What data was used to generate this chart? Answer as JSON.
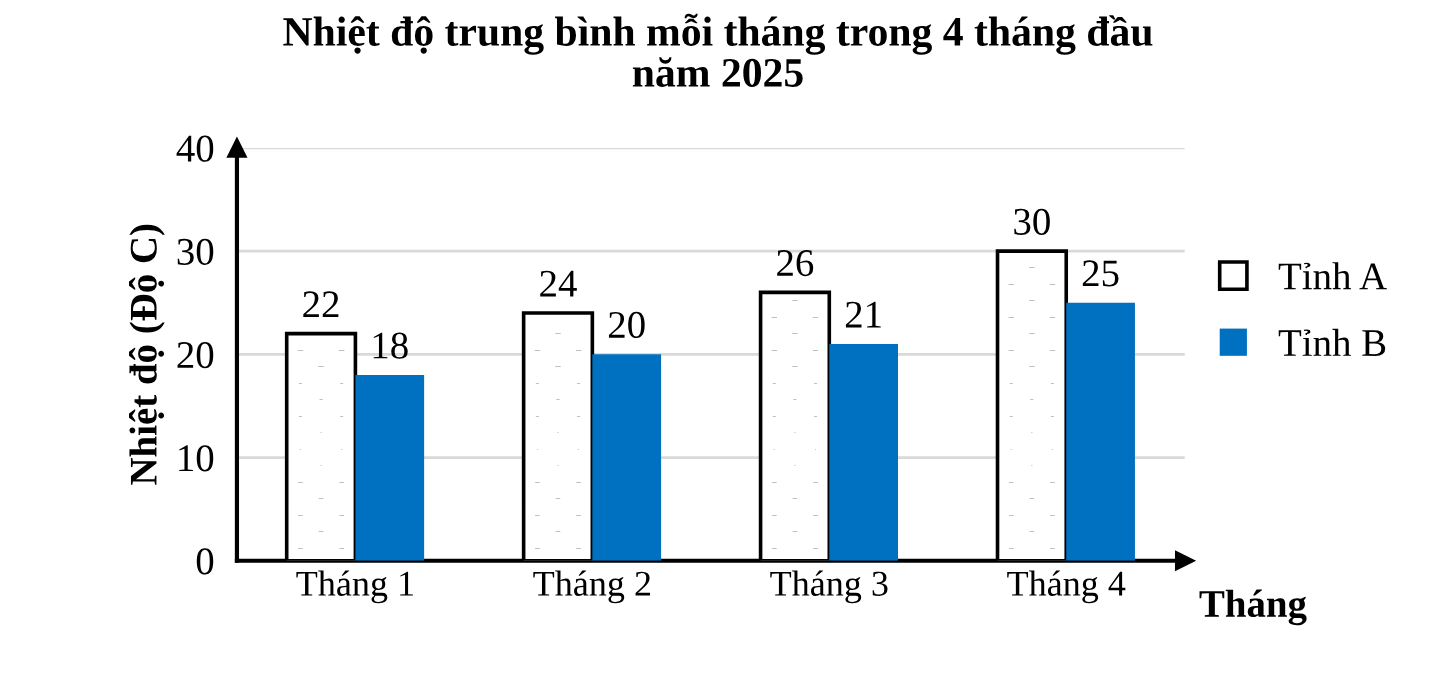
{
  "chart_data": {
    "type": "bar",
    "title": "Nhiệt độ trung bình mỗi tháng trong 4 tháng đầu\nnăm 2025",
    "xlabel": "Tháng",
    "ylabel": "Nhiệt độ (Độ C)",
    "categories": [
      "Tháng 1",
      "Tháng 2",
      "Tháng 3",
      "Tháng 4"
    ],
    "series": [
      {
        "name": "Tỉnh A",
        "color": "#ffffff",
        "values": [
          22,
          24,
          26,
          30
        ]
      },
      {
        "name": "Tỉnh B",
        "color": "#0070c0",
        "values": [
          18,
          20,
          21,
          25
        ]
      }
    ],
    "ylim": [
      0,
      40
    ],
    "yticks": [
      0,
      10,
      20,
      30,
      40
    ],
    "grid": "y",
    "legend": "right",
    "data_labels": true
  }
}
